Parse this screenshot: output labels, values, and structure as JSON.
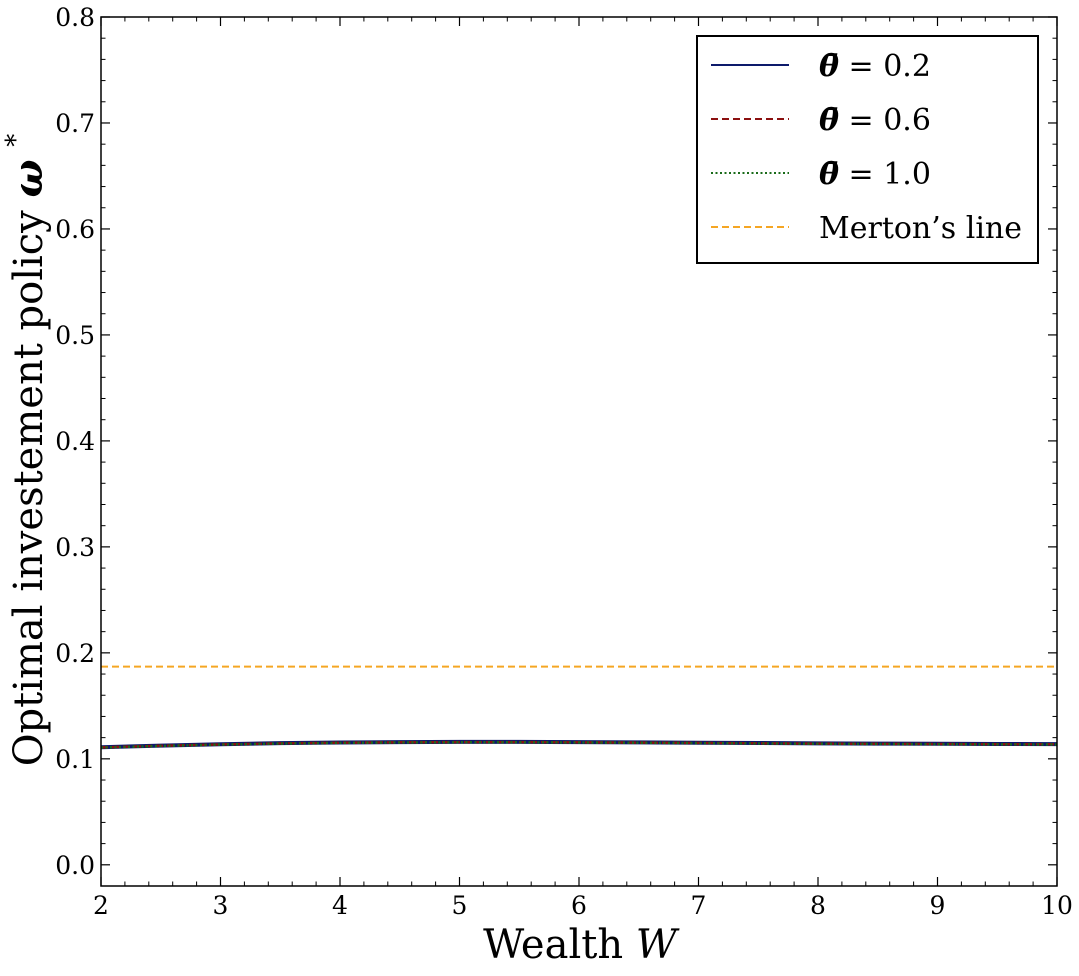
{
  "chart_data": {
    "type": "line",
    "xlabel": "Wealth",
    "xlabel_var": "W",
    "ylabel": "Optimal investement policy",
    "ylabel_var": "ω",
    "ylabel_sup": "*",
    "xlim": [
      2,
      10
    ],
    "ylim": [
      -0.02,
      0.8
    ],
    "x_ticks": [
      2,
      3,
      4,
      5,
      6,
      7,
      8,
      9,
      10
    ],
    "x_tick_labels": [
      "2",
      "3",
      "4",
      "5",
      "6",
      "7",
      "8",
      "9",
      "10"
    ],
    "y_ticks": [
      0.0,
      0.1,
      0.2,
      0.3,
      0.4,
      0.5,
      0.6,
      0.7,
      0.8
    ],
    "y_tick_labels": [
      "0.0",
      "0.1",
      "0.2",
      "0.3",
      "0.4",
      "0.5",
      "0.6",
      "0.7",
      "0.8"
    ],
    "grid": false,
    "legend_position": "top-right",
    "x": [
      2.0,
      2.5,
      3.0,
      3.5,
      4.0,
      4.5,
      5.0,
      5.5,
      6.0,
      6.5,
      7.0,
      7.5,
      8.0,
      8.5,
      9.0,
      9.5,
      10.0
    ],
    "series": [
      {
        "name": "θ̄ = 0.2",
        "legend_var": "θ̄",
        "legend_value": "= 0.2",
        "color": "#0d1a6b",
        "style": "solid",
        "values": [
          0.111,
          0.1125,
          0.1138,
          0.1148,
          0.1154,
          0.1158,
          0.116,
          0.116,
          0.1158,
          0.1155,
          0.1152,
          0.1149,
          0.1146,
          0.1144,
          0.1142,
          0.114,
          0.1139
        ]
      },
      {
        "name": "θ̄ = 0.6",
        "legend_var": "θ̄",
        "legend_value": "= 0.6",
        "color": "#8b1010",
        "style": "dashed",
        "values": [
          0.1108,
          0.1123,
          0.1136,
          0.1146,
          0.1152,
          0.1156,
          0.1158,
          0.1158,
          0.1156,
          0.1153,
          0.115,
          0.1147,
          0.1144,
          0.1142,
          0.114,
          0.1138,
          0.1137
        ]
      },
      {
        "name": "θ̄ = 1.0",
        "legend_var": "θ̄",
        "legend_value": "= 1.0",
        "color": "#1a6b1a",
        "style": "dotted",
        "values": [
          0.1106,
          0.1121,
          0.1134,
          0.1144,
          0.115,
          0.1154,
          0.1156,
          0.1156,
          0.1154,
          0.1151,
          0.1148,
          0.1145,
          0.1142,
          0.114,
          0.1138,
          0.1136,
          0.1135
        ]
      }
    ],
    "reference_lines": [
      {
        "name": "Merton’s line",
        "y": 0.187,
        "color": "#f5a623",
        "style": "dashed"
      }
    ]
  }
}
